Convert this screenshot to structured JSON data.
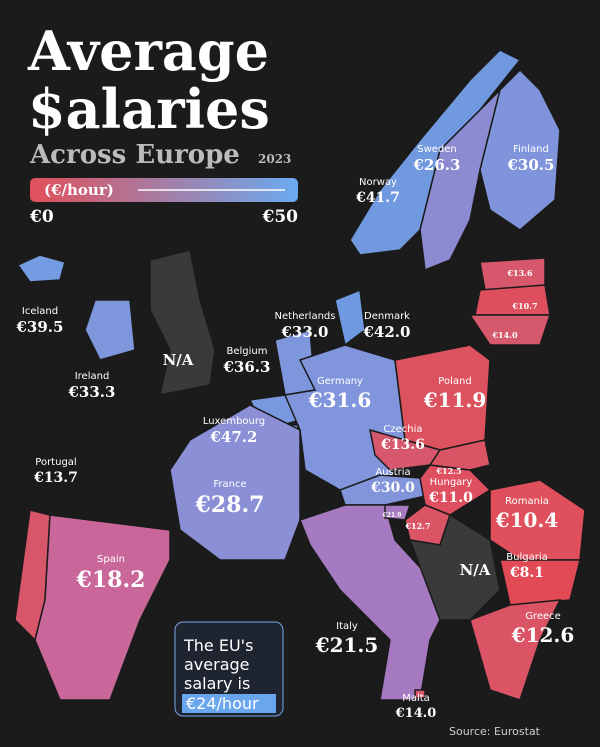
{
  "header": {
    "title_line1": "Average",
    "title_line2": "$alaries",
    "subtitle": "Across Europe",
    "year": "2023"
  },
  "legend": {
    "unit": "(€/hour)",
    "min": "€0",
    "max": "€50",
    "low_color": "#e0505a",
    "high_color": "#6aaaf0"
  },
  "countries": [
    {
      "name": "Norway",
      "value": "€41.7",
      "color": "#7099e0"
    },
    {
      "name": "Sweden",
      "value": "€26.3",
      "color": "#8c8ad0"
    },
    {
      "name": "Finland",
      "value": "€30.5",
      "color": "#8094dc"
    },
    {
      "name": "Iceland",
      "value": "€39.5",
      "color": "#749ce2"
    },
    {
      "name": "Ireland",
      "value": "€33.3",
      "color": "#7e96dc"
    },
    {
      "name": "Netherlands",
      "value": "€33.0",
      "color": "#7e96dc"
    },
    {
      "name": "Denmark",
      "value": "€42.0",
      "color": "#6f9ae2"
    },
    {
      "name": "Belgium",
      "value": "€36.3",
      "color": "#7899e0"
    },
    {
      "name": "Germany",
      "value": "€31.6",
      "color": "#8095dc"
    },
    {
      "name": "Luxembourg",
      "value": "€47.2",
      "color": "#6aa6ee"
    },
    {
      "name": "Portugal",
      "value": "€13.7",
      "color": "#d8566a"
    },
    {
      "name": "France",
      "value": "€28.7",
      "color": "#8a8fd6"
    },
    {
      "name": "Spain",
      "value": "€18.2",
      "color": "#c9679a"
    },
    {
      "name": "Poland",
      "value": "€11.9",
      "color": "#dc525e"
    },
    {
      "name": "Czechia",
      "value": "€13.6",
      "color": "#d7586c"
    },
    {
      "name": "Austria",
      "value": "€30.0",
      "color": "#8294da"
    },
    {
      "name": "Hungary",
      "value": "€11.0",
      "color": "#de5060"
    },
    {
      "name": "Romania",
      "value": "€10.4",
      "color": "#df4f5c"
    },
    {
      "name": "Bulgaria",
      "value": "€8.1",
      "color": "#e24a56"
    },
    {
      "name": "Italy",
      "value": "€21.5",
      "color": "#a57ac0"
    },
    {
      "name": "Greece",
      "value": "€12.6",
      "color": "#da5466"
    },
    {
      "name": "Malta",
      "value": "€14.0",
      "color": "#d6586c"
    },
    {
      "value": "€13.6",
      "color": "#d7586c"
    },
    {
      "value": "€10.7",
      "color": "#de4f5e"
    },
    {
      "value": "€14.0",
      "color": "#d6586c"
    },
    {
      "value": "€12.5",
      "color": "#da5466"
    },
    {
      "value": "€21.9",
      "color": "#a57ac0"
    },
    {
      "value": "€12.7",
      "color": "#da5466"
    }
  ],
  "unavailable": [
    {
      "label": "N/A",
      "color": "#3a3a3a"
    },
    {
      "label": "N/A",
      "color": "#3a3a3a"
    }
  ],
  "callout": {
    "line1": "The EU's",
    "line2": "average",
    "line3": "salary is",
    "highlight": "€24/hour"
  },
  "source": "Source: Eurostat"
}
